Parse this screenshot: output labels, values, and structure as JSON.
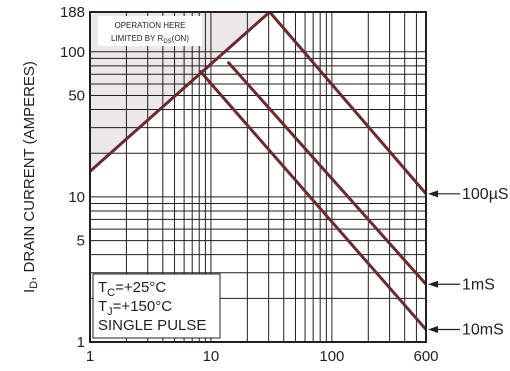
{
  "chart_data": {
    "type": "line",
    "title": "",
    "xlabel": "",
    "ylabel": "I_D, DRAIN CURRENT (AMPERES)",
    "ylabel_main": "I",
    "ylabel_sub": "D",
    "ylabel_rest": ", DRAIN CURRENT (AMPERES)",
    "x_scale": "log",
    "y_scale": "log",
    "xlim": [
      1,
      600
    ],
    "ylim": [
      1,
      188
    ],
    "grid": true,
    "x_ticks": [
      {
        "value": 1,
        "label": "1"
      },
      {
        "value": 10,
        "label": "10"
      },
      {
        "value": 100,
        "label": "100"
      },
      {
        "value": 600,
        "label": "600"
      }
    ],
    "y_ticks": [
      {
        "value": 188,
        "label": "188"
      },
      {
        "value": 100,
        "label": "100"
      },
      {
        "value": 50,
        "label": "50"
      },
      {
        "value": 10,
        "label": "10"
      },
      {
        "value": 5,
        "label": "5"
      },
      {
        "value": 1,
        "label": "1"
      }
    ],
    "x_minor_grid": [
      2,
      3,
      4,
      5,
      6,
      7,
      8,
      9,
      10,
      20,
      30,
      40,
      50,
      60,
      70,
      80,
      90,
      100,
      200,
      300,
      400,
      500
    ],
    "y_minor_grid": [
      2,
      3,
      4,
      5,
      6,
      7,
      8,
      9,
      10,
      20,
      30,
      40,
      50,
      60,
      70,
      80,
      90,
      100
    ],
    "series": [
      {
        "name": "R_DS(ON) limit",
        "x": [
          1,
          30.6
        ],
        "y": [
          15,
          188
        ]
      },
      {
        "name": "100µS",
        "x": [
          30.6,
          600
        ],
        "y": [
          188,
          10.5
        ]
      },
      {
        "name": "1mS",
        "x": [
          14,
          600
        ],
        "y": [
          84,
          2.5
        ]
      },
      {
        "name": "10mS",
        "x": [
          8.2,
          600
        ],
        "y": [
          73,
          1.22
        ]
      }
    ],
    "curve_labels": [
      {
        "series": "100µS",
        "text": "100µS",
        "y": 10.5
      },
      {
        "series": "1mS",
        "text": "1mS",
        "y": 2.5
      },
      {
        "series": "10mS",
        "text": "10mS",
        "y": 1.22
      }
    ],
    "region_note": {
      "line1": "OPERATION HERE",
      "line2_main": "LIMITED BY R",
      "line2_sub": "DS",
      "line2_end": "(ON)"
    },
    "conditions": {
      "line1_main": "T",
      "line1_sub": "C",
      "line1_end": "=+25°C",
      "line2_main": "T",
      "line2_sub": "J",
      "line2_end": "=+150°C",
      "line3": "SINGLE PULSE"
    }
  }
}
